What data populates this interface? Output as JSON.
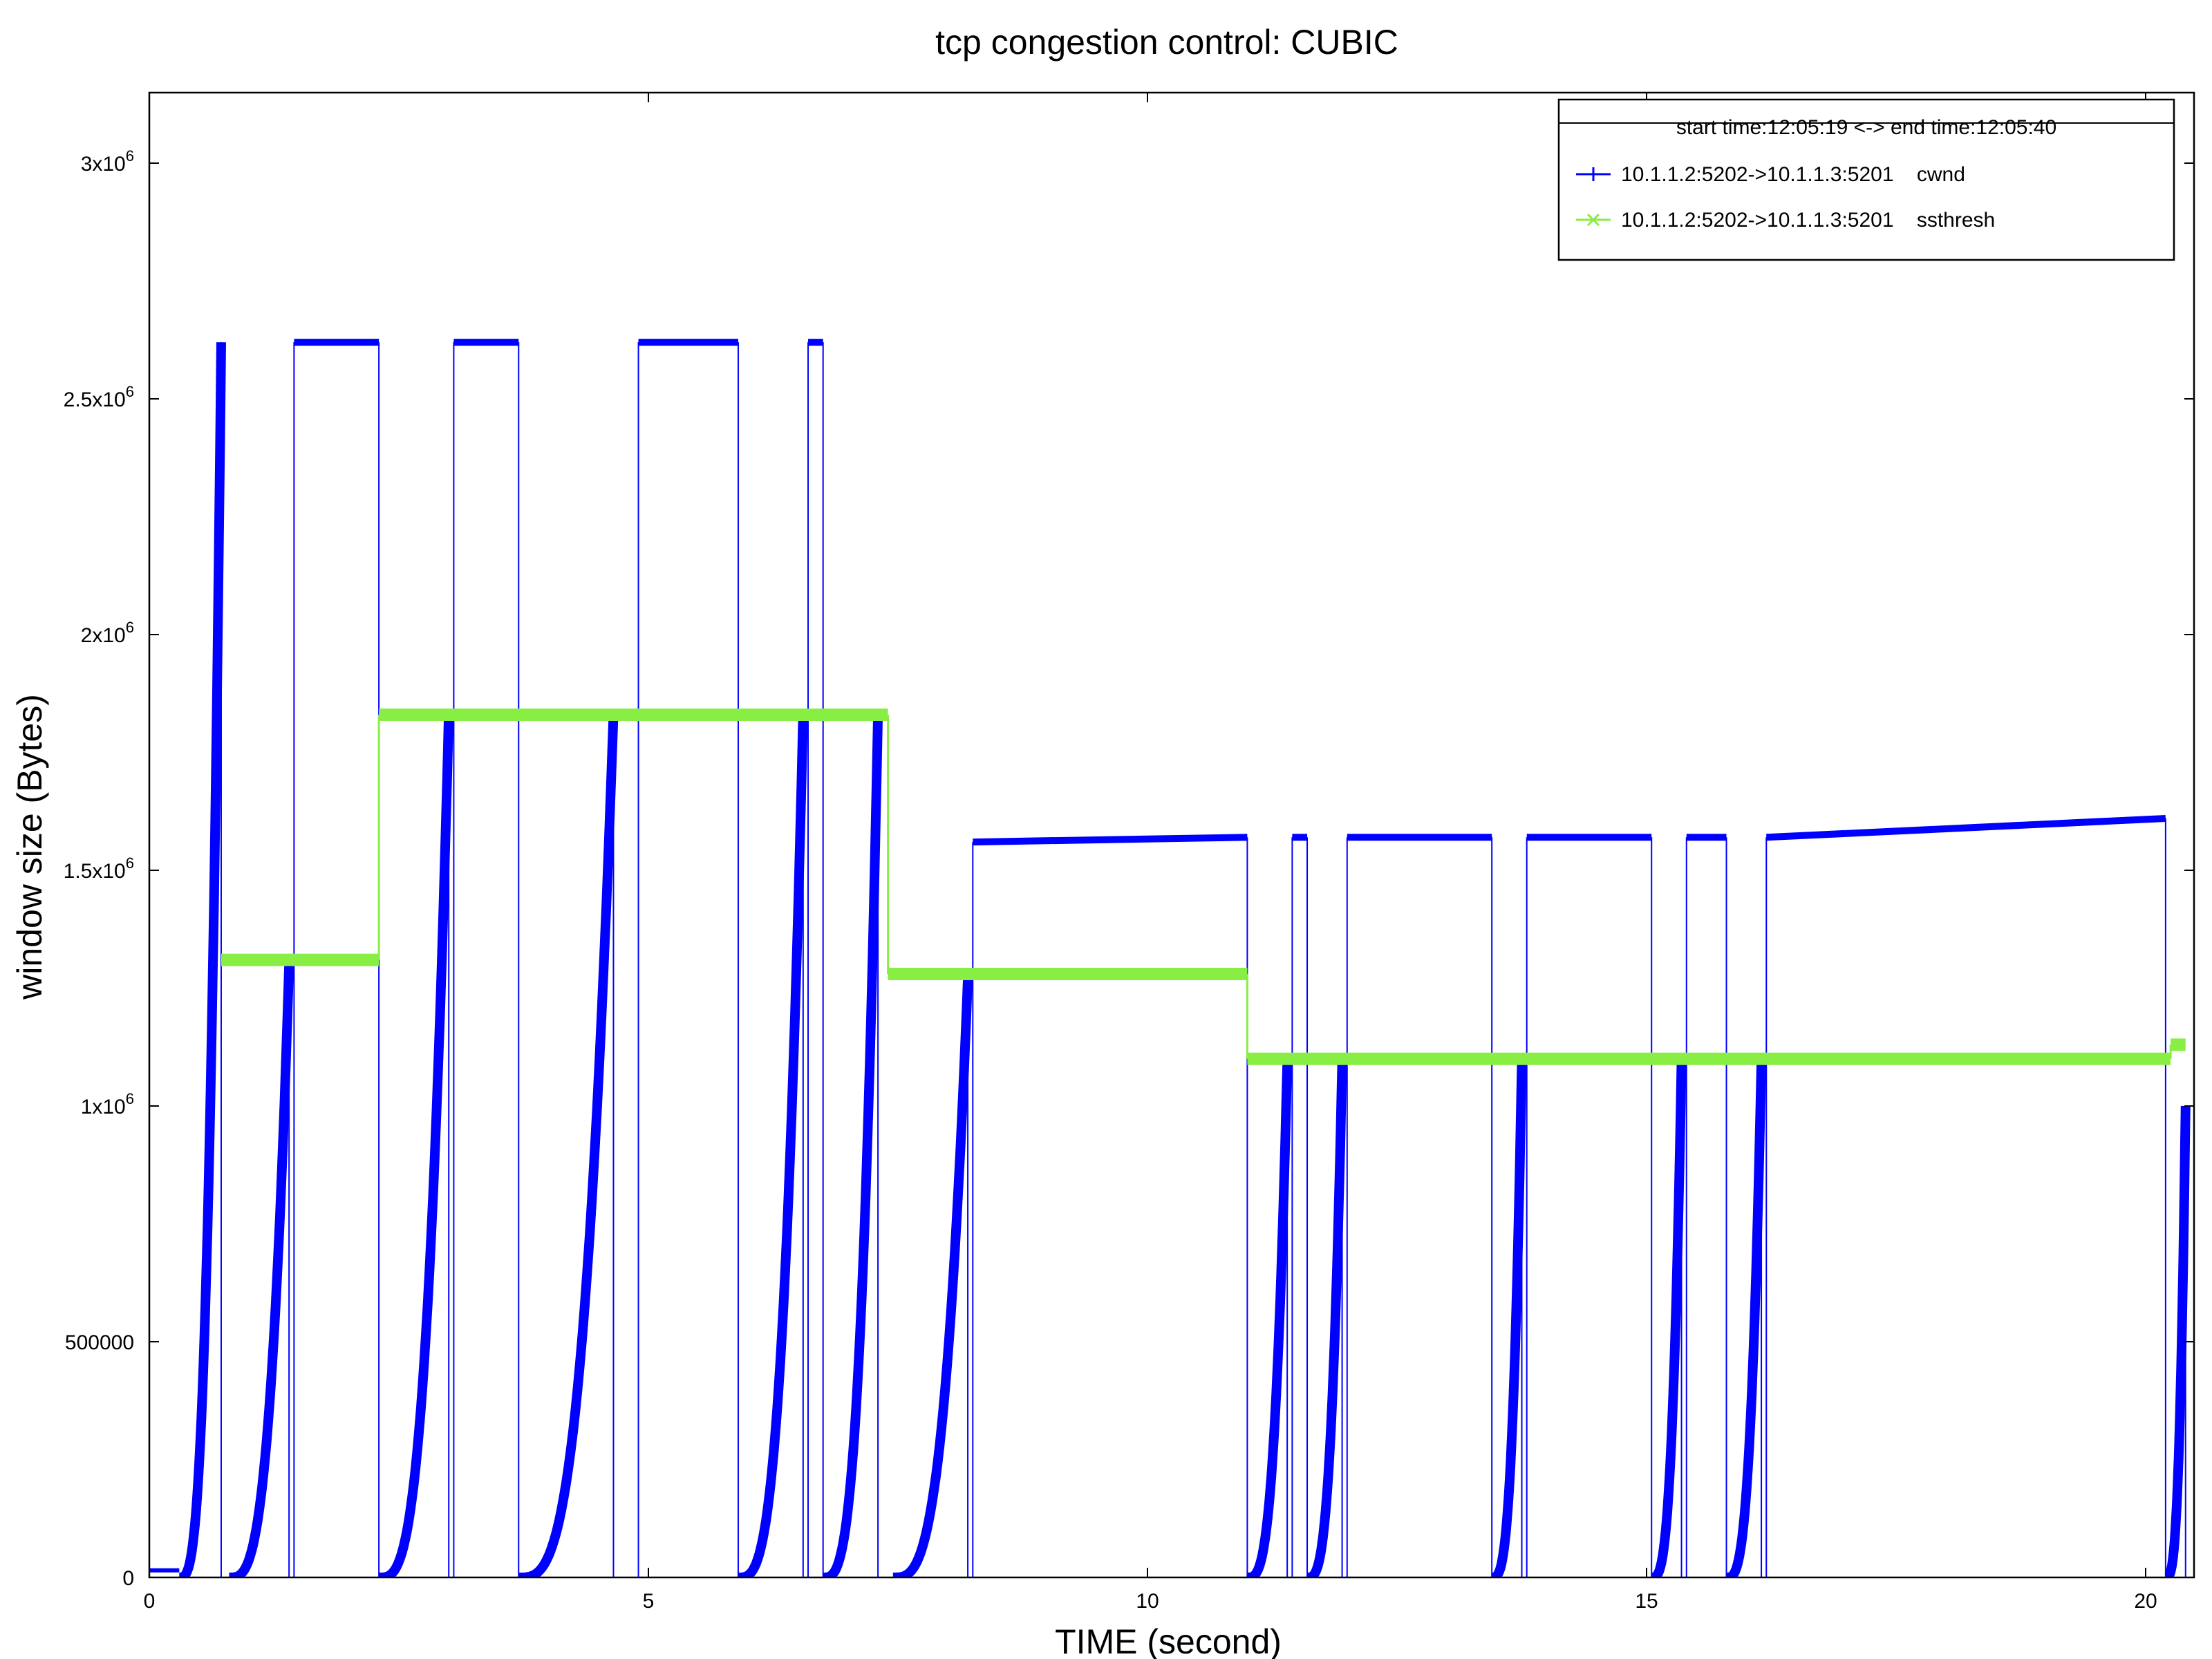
{
  "chart_data": {
    "type": "line",
    "title": "tcp congestion control: CUBIC",
    "xlabel": "TIME (second)",
    "ylabel": "window size (Bytes)",
    "xlim": [
      0,
      20.4
    ],
    "ylim": [
      0,
      3150000
    ],
    "grid": false,
    "legend_position": "top-right",
    "legend_header": "start time:12:05:19 <-> end time:12:05:40",
    "x_ticks": [
      {
        "value": 0,
        "label": "0"
      },
      {
        "value": 5,
        "label": "5"
      },
      {
        "value": 10,
        "label": "10"
      },
      {
        "value": 15,
        "label": "15"
      },
      {
        "value": 20,
        "label": "20"
      }
    ],
    "y_ticks": [
      {
        "value": 0,
        "label": "0",
        "exp": ""
      },
      {
        "value": 500000,
        "label": "500000",
        "exp": ""
      },
      {
        "value": 1000000,
        "label": "1x10",
        "exp": "6"
      },
      {
        "value": 1500000,
        "label": "1.5x10",
        "exp": "6"
      },
      {
        "value": 2000000,
        "label": "2x10",
        "exp": "6"
      },
      {
        "value": 2500000,
        "label": "2.5x10",
        "exp": "6"
      },
      {
        "value": 3000000,
        "label": "3x10",
        "exp": "6"
      }
    ],
    "series": [
      {
        "name": "10.1.1.2:5202->10.1.1.3:5201    cwnd",
        "color": "#0000ff",
        "marker": "plus",
        "ramps": [
          [
            0.3,
            0.72,
            2620000
          ],
          [
            0.8,
            1.4,
            1300000
          ],
          [
            2.3,
            3.0,
            1830000
          ],
          [
            3.7,
            4.65,
            1830000
          ],
          [
            5.9,
            6.55,
            1830000
          ],
          [
            6.75,
            7.3,
            1830000
          ],
          [
            7.45,
            8.2,
            1270000
          ],
          [
            11.0,
            11.4,
            1090000
          ],
          [
            11.6,
            11.95,
            1090000
          ],
          [
            13.45,
            13.75,
            1090000
          ],
          [
            15.05,
            15.35,
            1090000
          ],
          [
            15.8,
            16.15,
            1090000
          ],
          [
            20.2,
            20.4,
            1000000
          ]
        ],
        "plateaus": [
          [
            1.45,
            2.3,
            2620000,
            2620000
          ],
          [
            3.05,
            3.7,
            2620000,
            2620000
          ],
          [
            4.9,
            5.9,
            2620000,
            2620000
          ],
          [
            6.6,
            6.75,
            2620000,
            2620000
          ],
          [
            8.25,
            11.0,
            1560000,
            1570000
          ],
          [
            11.45,
            11.6,
            1570000,
            1570000
          ],
          [
            12.0,
            13.45,
            1570000,
            1570000
          ],
          [
            13.8,
            15.05,
            1570000,
            1570000
          ],
          [
            15.4,
            15.8,
            1570000,
            1570000
          ],
          [
            16.2,
            20.2,
            1570000,
            1610000
          ]
        ]
      },
      {
        "name": "10.1.1.2:5202->10.1.1.3:5201    ssthresh",
        "color": "#88ee44",
        "marker": "cross",
        "segments": [
          [
            0.72,
            2.3,
            1310000
          ],
          [
            2.3,
            7.4,
            1830000
          ],
          [
            7.4,
            11.0,
            1280000
          ],
          [
            11.0,
            20.25,
            1100000
          ],
          [
            20.25,
            20.4,
            1130000
          ]
        ]
      }
    ]
  }
}
